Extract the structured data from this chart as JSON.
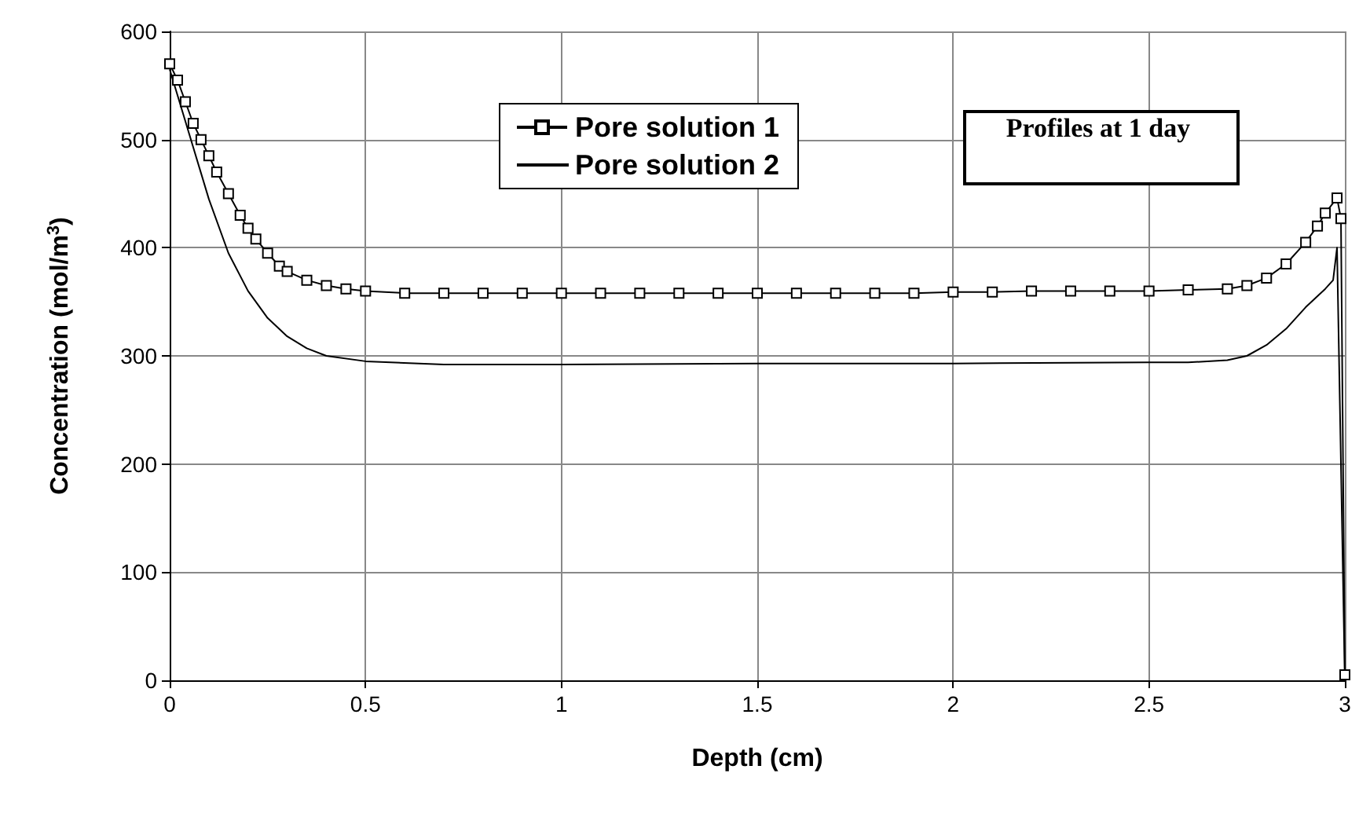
{
  "chart_data": {
    "type": "line",
    "xlabel": "Depth (cm)",
    "ylabel": "Concentration (mol/m$^{3}$)",
    "annotations": [
      "Profiles at 1 day"
    ],
    "xlim": [
      0,
      3
    ],
    "xticks": [
      0,
      0.5,
      1,
      1.5,
      2,
      2.5,
      3
    ],
    "ylim": [
      0,
      600
    ],
    "yticks": [
      0,
      100,
      200,
      300,
      400,
      500,
      600
    ],
    "grid": true,
    "legend": "top",
    "series": [
      {
        "name": "Pore solution 1",
        "color": "#000000",
        "marker": "square",
        "x": [
          0,
          0.02,
          0.04,
          0.06,
          0.08,
          0.1,
          0.12,
          0.15,
          0.18,
          0.2,
          0.22,
          0.25,
          0.28,
          0.3,
          0.35,
          0.4,
          0.45,
          0.5,
          0.6,
          0.7,
          0.8,
          0.9,
          1,
          1.1,
          1.2,
          1.3,
          1.4,
          1.5,
          1.6,
          1.7,
          1.8,
          1.9,
          2,
          2.1,
          2.2,
          2.3,
          2.4,
          2.5,
          2.6,
          2.7,
          2.75,
          2.8,
          2.85,
          2.9,
          2.93,
          2.95,
          2.98,
          2.99,
          3
        ],
        "values": [
          570,
          555,
          535,
          515,
          500,
          485,
          470,
          450,
          430,
          418,
          408,
          395,
          383,
          378,
          370,
          365,
          362,
          360,
          358,
          358,
          358,
          358,
          358,
          358,
          358,
          358,
          358,
          358,
          358,
          358,
          358,
          358,
          359,
          359,
          360,
          360,
          360,
          360,
          361,
          362,
          365,
          372,
          385,
          405,
          420,
          432,
          446,
          427,
          5
        ]
      },
      {
        "name": "Pore solution 2",
        "color": "#000000",
        "marker": "none",
        "x": [
          0,
          0.05,
          0.1,
          0.15,
          0.2,
          0.25,
          0.3,
          0.35,
          0.4,
          0.5,
          0.7,
          1,
          1.5,
          2,
          2.5,
          2.6,
          2.7,
          2.75,
          2.8,
          2.85,
          2.9,
          2.95,
          2.97,
          2.98,
          3
        ],
        "values": [
          565,
          505,
          445,
          395,
          360,
          335,
          318,
          307,
          300,
          295,
          292,
          292,
          293,
          293,
          294,
          294,
          296,
          300,
          310,
          325,
          345,
          362,
          370,
          400,
          0
        ]
      }
    ]
  }
}
